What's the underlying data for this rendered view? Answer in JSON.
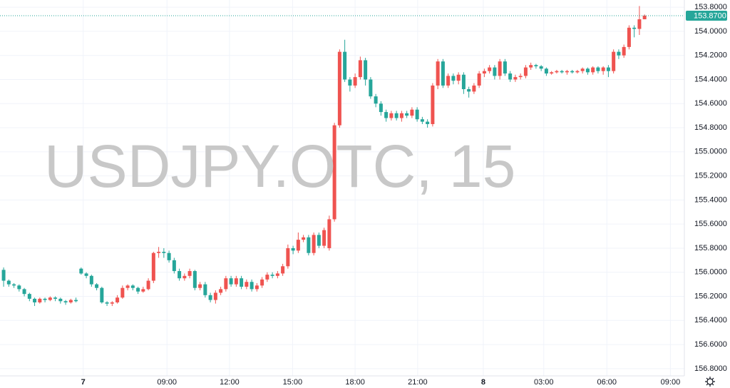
{
  "chart_data": {
    "type": "candlestick",
    "watermark": "USDJPY.OTC, 15",
    "y_inverted": true,
    "grid": true,
    "up_color": "#26a69a",
    "down_color": "#ef5350",
    "last_price": {
      "value": 153.87,
      "label": "153.8700"
    },
    "xlim": [
      -0.7,
      131.7
    ],
    "xticks": [
      {
        "value": 15.4,
        "label": "7"
      },
      {
        "value": 31.6,
        "label": "09:00"
      },
      {
        "value": 43.7,
        "label": "12:00"
      },
      {
        "value": 55.9,
        "label": "15:00"
      },
      {
        "value": 68.0,
        "label": "18:00"
      },
      {
        "value": 80.1,
        "label": "21:00"
      },
      {
        "value": 92.8,
        "label": "8"
      },
      {
        "value": 104.5,
        "label": "03:00"
      },
      {
        "value": 116.7,
        "label": "06:00"
      },
      {
        "value": 129.0,
        "label": "09:00"
      }
    ],
    "ylim": [
      153.74,
      156.86
    ],
    "yticks": [
      {
        "value": 153.8,
        "label": "153.8000"
      },
      {
        "value": 154.0,
        "label": "154.0000"
      },
      {
        "value": 154.2,
        "label": "154.2000"
      },
      {
        "value": 154.4,
        "label": "154.4000"
      },
      {
        "value": 154.6,
        "label": "154.6000"
      },
      {
        "value": 154.8,
        "label": "154.8000"
      },
      {
        "value": 155.0,
        "label": "155.0000"
      },
      {
        "value": 155.2,
        "label": "155.2000"
      },
      {
        "value": 155.4,
        "label": "155.4000"
      },
      {
        "value": 155.6,
        "label": "155.6000"
      },
      {
        "value": 155.8,
        "label": "155.8000"
      },
      {
        "value": 156.0,
        "label": "156.0000"
      },
      {
        "value": 156.2,
        "label": "156.2000"
      },
      {
        "value": 156.4,
        "label": "156.4000"
      },
      {
        "value": 156.6,
        "label": "156.6000"
      },
      {
        "value": 156.8,
        "label": "156.8000"
      }
    ],
    "x": [
      0,
      1,
      2,
      3,
      4,
      5,
      6,
      7,
      8,
      9,
      10,
      11,
      12,
      13,
      14,
      15,
      16,
      17,
      18,
      19,
      20,
      21,
      22,
      23,
      24,
      25,
      26,
      27,
      28,
      29,
      30,
      31,
      32,
      33,
      34,
      35,
      36,
      37,
      38,
      39,
      40,
      41,
      42,
      43,
      44,
      45,
      46,
      47,
      48,
      49,
      50,
      51,
      52,
      53,
      54,
      55,
      56,
      57,
      58,
      59,
      60,
      61,
      62,
      63,
      64,
      65,
      66,
      67,
      68,
      69,
      70,
      71,
      72,
      73,
      74,
      75,
      76,
      77,
      78,
      79,
      80,
      81,
      82,
      83,
      84,
      85,
      86,
      87,
      88,
      89,
      90,
      91,
      92,
      93,
      94,
      95,
      96,
      97,
      98,
      99,
      100,
      101,
      102,
      103,
      104,
      105,
      106,
      107,
      108,
      109,
      110,
      111,
      112,
      113,
      114,
      115,
      116,
      117,
      118,
      119,
      120,
      121,
      122,
      123,
      124
    ],
    "open": [
      155.98,
      156.07,
      156.1,
      156.11,
      156.14,
      156.18,
      156.22,
      156.25,
      156.22,
      156.23,
      156.21,
      156.22,
      156.24,
      156.25,
      156.23,
      155.97,
      156.01,
      156.03,
      156.1,
      156.13,
      156.25,
      156.26,
      156.25,
      156.21,
      156.13,
      156.11,
      156.13,
      156.16,
      156.14,
      156.07,
      155.84,
      155.83,
      155.84,
      155.9,
      155.99,
      156.05,
      156.03,
      155.99,
      156.13,
      156.1,
      156.19,
      156.23,
      156.17,
      156.14,
      156.05,
      156.1,
      156.05,
      156.12,
      156.08,
      156.14,
      156.11,
      156.06,
      156.02,
      156.03,
      156.01,
      155.95,
      155.8,
      155.82,
      155.73,
      155.71,
      155.84,
      155.69,
      155.78,
      155.8,
      155.56,
      154.78,
      154.17,
      154.4,
      154.45,
      154.38,
      154.24,
      154.4,
      154.54,
      154.6,
      154.67,
      154.72,
      154.68,
      154.72,
      154.68,
      154.7,
      154.65,
      154.73,
      154.75,
      154.77,
      154.45,
      154.25,
      154.45,
      154.37,
      154.41,
      154.36,
      154.48,
      154.5,
      154.45,
      154.35,
      154.33,
      154.3,
      154.37,
      154.25,
      154.35,
      154.4,
      154.38,
      154.37,
      154.3,
      154.28,
      154.29,
      154.31,
      154.35,
      154.34,
      154.33,
      154.34,
      154.33,
      154.34,
      154.33,
      154.31,
      154.34,
      154.3,
      154.33,
      154.3,
      154.33,
      154.17,
      154.2,
      154.13,
      153.97,
      153.98,
      153.9
    ],
    "high": [
      156.12,
      156.12,
      156.13,
      156.16,
      156.2,
      156.24,
      156.28,
      156.26,
      156.25,
      156.24,
      156.24,
      156.26,
      156.27,
      156.26,
      156.25,
      156.02,
      156.05,
      156.12,
      156.15,
      156.26,
      156.28,
      156.28,
      156.26,
      156.22,
      156.15,
      156.15,
      156.18,
      156.17,
      156.15,
      156.09,
      155.88,
      155.88,
      155.92,
      156.01,
      156.07,
      156.07,
      156.05,
      156.15,
      156.15,
      156.21,
      156.25,
      156.26,
      156.19,
      156.16,
      156.12,
      156.12,
      156.14,
      156.14,
      156.16,
      156.16,
      156.13,
      156.08,
      156.05,
      156.05,
      156.03,
      155.97,
      155.85,
      155.84,
      155.75,
      155.86,
      155.86,
      155.8,
      155.8,
      155.82,
      155.58,
      154.8,
      154.42,
      154.5,
      154.47,
      154.4,
      154.45,
      154.56,
      154.63,
      154.7,
      154.75,
      154.74,
      154.74,
      154.75,
      154.72,
      154.72,
      154.75,
      154.77,
      154.8,
      154.79,
      154.48,
      154.47,
      154.47,
      154.44,
      154.44,
      154.52,
      154.55,
      154.52,
      154.47,
      154.38,
      154.35,
      154.4,
      154.4,
      154.37,
      154.42,
      154.42,
      154.4,
      154.39,
      154.32,
      154.31,
      154.33,
      154.37,
      154.36,
      154.35,
      154.35,
      154.36,
      154.35,
      154.35,
      154.35,
      154.36,
      154.36,
      154.35,
      154.36,
      154.38,
      154.35,
      154.23,
      154.22,
      154.15,
      154.05,
      154.03,
      153.89
    ],
    "low": [
      155.96,
      156.06,
      156.09,
      156.1,
      156.13,
      156.17,
      156.21,
      156.21,
      156.21,
      156.2,
      156.2,
      156.21,
      156.23,
      156.22,
      156.21,
      155.96,
      156.0,
      156.02,
      156.09,
      156.12,
      156.24,
      156.24,
      156.19,
      156.11,
      156.1,
      156.1,
      156.12,
      156.12,
      156.05,
      155.83,
      155.79,
      155.8,
      155.82,
      155.88,
      155.97,
      156.01,
      155.97,
      155.98,
      156.08,
      156.08,
      156.17,
      156.15,
      156.12,
      156.03,
      156.03,
      156.03,
      156.03,
      156.06,
      156.06,
      156.09,
      156.04,
      156.0,
      156.0,
      155.99,
      155.93,
      155.77,
      155.78,
      155.67,
      155.69,
      155.69,
      155.67,
      155.67,
      155.63,
      155.53,
      154.76,
      154.15,
      154.07,
      154.38,
      154.35,
      154.21,
      154.22,
      154.38,
      154.52,
      154.58,
      154.65,
      154.66,
      154.66,
      154.66,
      154.66,
      154.63,
      154.63,
      154.71,
      154.73,
      154.43,
      154.23,
      154.23,
      154.35,
      154.35,
      154.34,
      154.34,
      154.46,
      154.43,
      154.33,
      154.31,
      154.28,
      154.28,
      154.23,
      154.23,
      154.33,
      154.36,
      154.35,
      154.28,
      154.26,
      154.27,
      154.28,
      154.3,
      154.33,
      154.32,
      154.32,
      154.32,
      154.32,
      154.32,
      154.3,
      154.3,
      154.29,
      154.29,
      154.29,
      154.28,
      154.15,
      154.15,
      154.11,
      153.95,
      153.95,
      153.79,
      153.86
    ],
    "close": [
      156.07,
      156.1,
      156.11,
      156.14,
      156.18,
      156.22,
      156.25,
      156.22,
      156.23,
      156.21,
      156.22,
      156.24,
      156.25,
      156.23,
      156.24,
      156.01,
      156.03,
      156.1,
      156.13,
      156.25,
      156.26,
      156.25,
      156.21,
      156.13,
      156.11,
      156.13,
      156.16,
      156.14,
      156.07,
      155.84,
      155.83,
      155.84,
      155.9,
      155.99,
      156.05,
      156.03,
      155.99,
      156.13,
      156.1,
      156.19,
      156.23,
      156.17,
      156.14,
      156.05,
      156.1,
      156.05,
      156.12,
      156.08,
      156.14,
      156.11,
      156.06,
      156.02,
      156.03,
      156.01,
      155.95,
      155.8,
      155.82,
      155.73,
      155.71,
      155.84,
      155.69,
      155.78,
      155.65,
      155.56,
      154.78,
      154.17,
      154.4,
      154.45,
      154.38,
      154.24,
      154.4,
      154.54,
      154.6,
      154.67,
      154.72,
      154.68,
      154.72,
      154.68,
      154.7,
      154.65,
      154.73,
      154.75,
      154.77,
      154.45,
      154.25,
      154.45,
      154.37,
      154.41,
      154.36,
      154.48,
      154.5,
      154.45,
      154.35,
      154.33,
      154.3,
      154.37,
      154.25,
      154.35,
      154.4,
      154.38,
      154.37,
      154.3,
      154.28,
      154.29,
      154.31,
      154.35,
      154.34,
      154.33,
      154.34,
      154.33,
      154.34,
      154.33,
      154.31,
      154.34,
      154.3,
      154.33,
      154.3,
      154.33,
      154.17,
      154.2,
      154.13,
      153.97,
      153.98,
      153.9,
      153.87
    ]
  }
}
